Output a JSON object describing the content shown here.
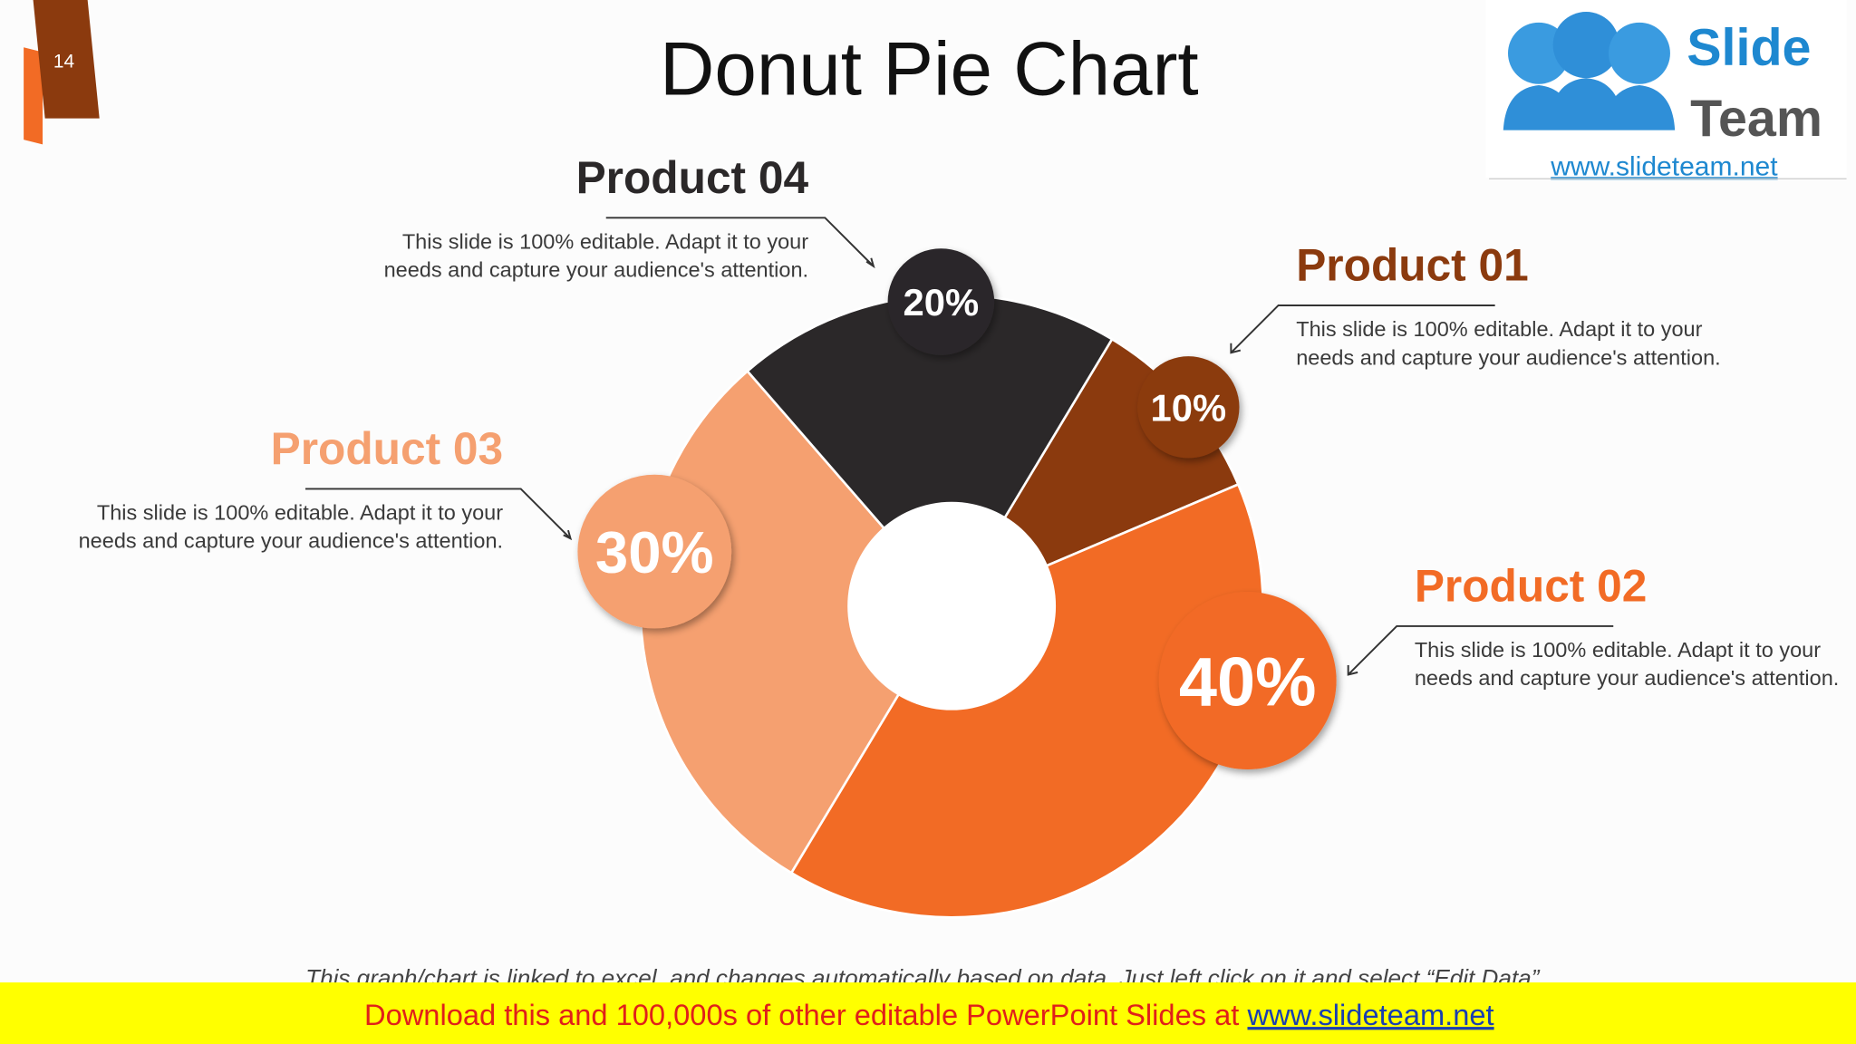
{
  "page": {
    "slide_number": "14",
    "logo": {
      "line1": "Slide",
      "line2": "Team",
      "url": "www.slideteam.net"
    },
    "footnote": "This graph/chart is linked to excel, and changes automatically based on data. Just left click on it and select “Edit Data”.",
    "banner": {
      "text": "Download this and 100,000s of other editable PowerPoint Slides at",
      "link": "www.slideteam.net"
    }
  },
  "chart_data": {
    "type": "donut",
    "title": "Donut Pie Chart",
    "categories": [
      "Product 01",
      "Product 02",
      "Product 03",
      "Product 04"
    ],
    "values": [
      10,
      40,
      30,
      20
    ],
    "value_labels": [
      "10%",
      "40%",
      "30%",
      "20%"
    ],
    "colors": [
      "#8b3a0e",
      "#f26b25",
      "#f5a070",
      "#2b2829"
    ],
    "descriptions": [
      "This slide is 100% editable. Adapt it to your needs and capture your audience's attention.",
      "This slide is 100% editable. Adapt it to your needs and capture your audience's attention.",
      "This slide is 100% editable. Adapt it to your needs and capture your audience's attention.",
      "This slide is 100% editable. Adapt it to your needs and capture your audience's attention."
    ]
  }
}
